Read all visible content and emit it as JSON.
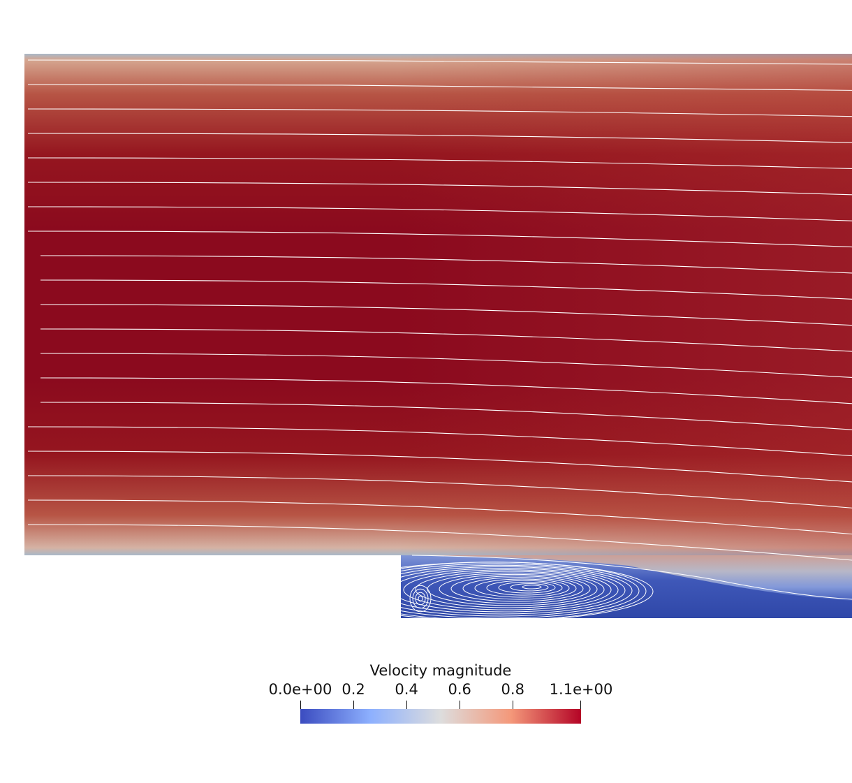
{
  "legend": {
    "title": "Velocity magnitude",
    "ticks": [
      {
        "label": "0.0e+00",
        "value": 0.0
      },
      {
        "label": "0.2",
        "value": 0.2
      },
      {
        "label": "0.4",
        "value": 0.4
      },
      {
        "label": "0.6",
        "value": 0.6
      },
      {
        "label": "0.8",
        "value": 0.8
      },
      {
        "label": "1.1e+00",
        "value": 1.057
      }
    ],
    "range": [
      0.0,
      1.057
    ],
    "colormap": [
      "#3b4cc0",
      "#8db0fe",
      "#dddddd",
      "#f4987a",
      "#b40426"
    ]
  },
  "colors": {
    "flow_core": "#8b0a1e",
    "flow_mid": "#9e2a2b",
    "flow_wall": "#c9b3a8",
    "recirculation": "#3b55b0",
    "streamline": "#ffffff"
  }
}
